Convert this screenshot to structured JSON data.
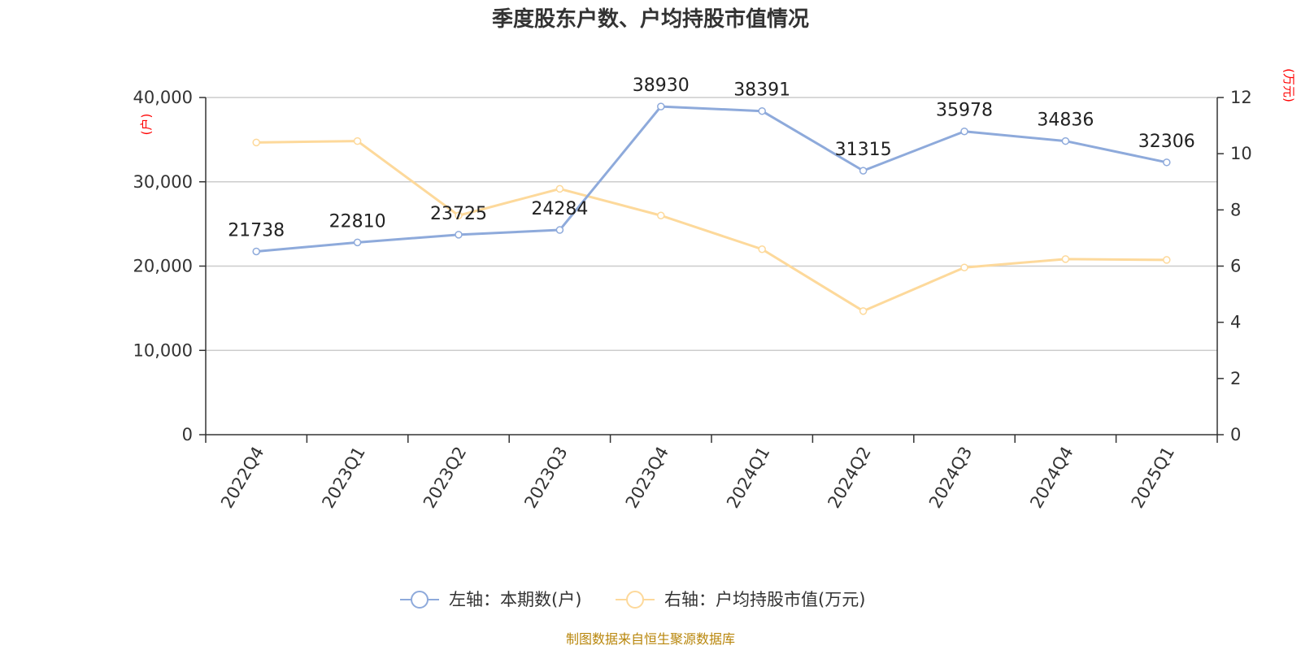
{
  "chart_data": {
    "type": "line",
    "title": "季度股东户数、户均持股市值情况",
    "categories": [
      "2022Q4",
      "2023Q1",
      "2023Q2",
      "2023Q3",
      "2023Q4",
      "2024Q1",
      "2024Q2",
      "2024Q3",
      "2024Q4",
      "2025Q1"
    ],
    "left_axis": {
      "unit_label": "(户)",
      "ylim": [
        0,
        40000
      ],
      "ticks": [
        "0",
        "10,000",
        "20,000",
        "30,000",
        "40,000"
      ],
      "tick_values": [
        0,
        10000,
        20000,
        30000,
        40000
      ]
    },
    "right_axis": {
      "unit_label": "(万元)",
      "ylim": [
        0,
        12
      ],
      "ticks": [
        "0",
        "2",
        "4",
        "6",
        "8",
        "10",
        "12"
      ],
      "tick_values": [
        0,
        2,
        4,
        6,
        8,
        10,
        12
      ]
    },
    "series": [
      {
        "name": "左轴：本期数(户)",
        "axis": "left",
        "color": "#8eaadb",
        "values": [
          21738,
          22810,
          23725,
          24284,
          38930,
          38391,
          31315,
          35978,
          34836,
          32306
        ],
        "labels": [
          "21738",
          "22810",
          "23725",
          "24284",
          "38930",
          "38391",
          "31315",
          "35978",
          "34836",
          "32306"
        ]
      },
      {
        "name": "右轴：户均持股市值(万元)",
        "axis": "right",
        "color": "#fdd99b",
        "values": [
          10.4,
          10.45,
          7.8,
          8.75,
          7.8,
          6.6,
          4.4,
          5.95,
          6.25,
          6.22
        ]
      }
    ],
    "grid": true,
    "legend_position": "bottom"
  },
  "source": "制图数据来自恒生聚源数据库"
}
